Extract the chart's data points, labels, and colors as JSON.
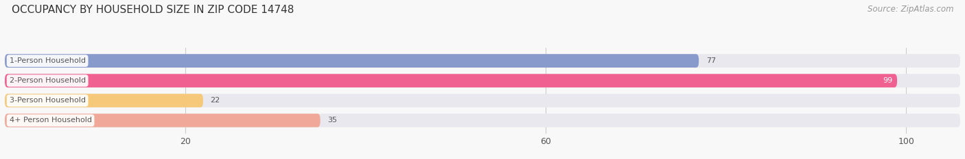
{
  "title": "OCCUPANCY BY HOUSEHOLD SIZE IN ZIP CODE 14748",
  "source": "Source: ZipAtlas.com",
  "categories": [
    "1-Person Household",
    "2-Person Household",
    "3-Person Household",
    "4+ Person Household"
  ],
  "values": [
    77,
    99,
    22,
    35
  ],
  "bar_colors": [
    "#8899cc",
    "#f06090",
    "#f5c87a",
    "#f0a898"
  ],
  "bar_bg_color": "#e8e8ee",
  "label_bg_color": "#ffffff",
  "xlim": [
    0,
    106
  ],
  "xticks": [
    20,
    60,
    100
  ],
  "title_fontsize": 11,
  "source_fontsize": 8.5,
  "label_fontsize": 8,
  "value_fontsize": 8,
  "tick_fontsize": 9,
  "bg_color": "#f8f8f8",
  "text_color": "#555555",
  "value_color_inside": "#ffffff",
  "value_color_outside": "#555555"
}
